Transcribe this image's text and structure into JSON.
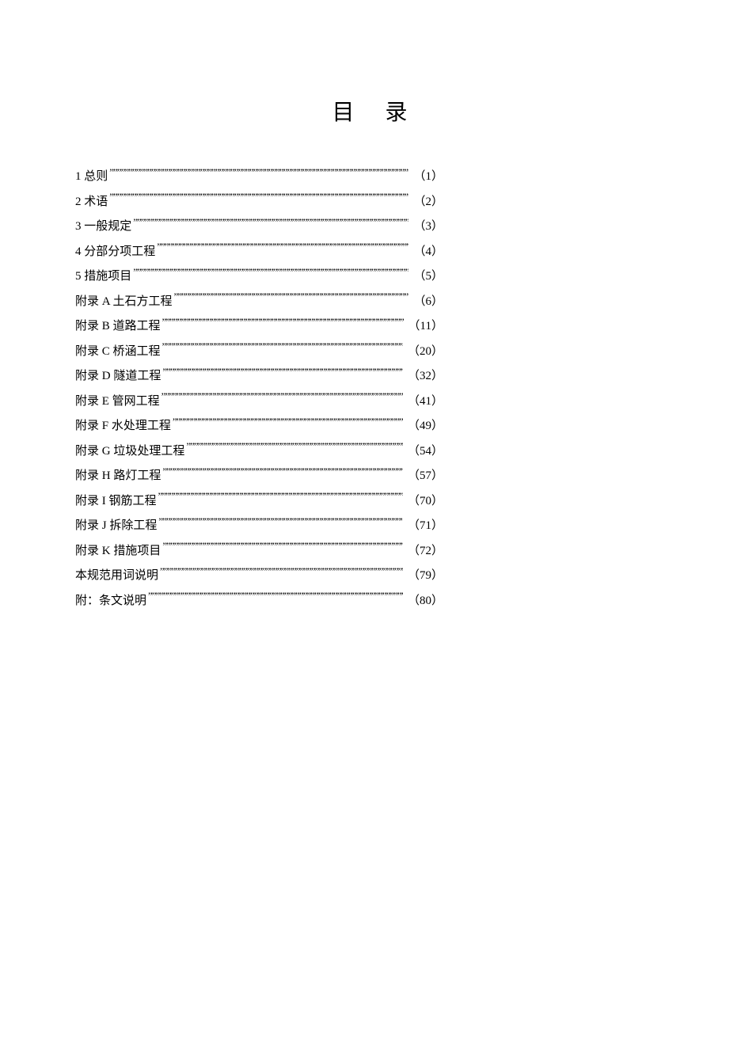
{
  "title": "目 录",
  "entries": [
    {
      "label": "1  总则",
      "page": "（1）"
    },
    {
      "label": "2  术语",
      "page": "（2）"
    },
    {
      "label": "3  一般规定",
      "page": "（3）"
    },
    {
      "label": "4  分部分项工程",
      "page": "（4）"
    },
    {
      "label": "5  措施项目",
      "page": "（5）"
    },
    {
      "label": "附录 A   土石方工程",
      "page": "（6）"
    },
    {
      "label": "附录 B   道路工程",
      "page": "（11）"
    },
    {
      "label": "附录 C   桥涵工程",
      "page": "（20）"
    },
    {
      "label": "附录 D   隧道工程",
      "page": "（32）"
    },
    {
      "label": "附录 E   管网工程",
      "page": "（41）"
    },
    {
      "label": "附录 F   水处理工程",
      "page": "（49）"
    },
    {
      "label": "附录 G   垃圾处理工程",
      "page": "（54）"
    },
    {
      "label": "附录 H   路灯工程",
      "page": "（57）"
    },
    {
      "label": "附录 I   钢筋工程",
      "page": "（70）"
    },
    {
      "label": "附录 J   拆除工程",
      "page": "（71）"
    },
    {
      "label": "附录 K   措施项目",
      "page": "（72）"
    },
    {
      "label": "本规范用词说明",
      "page": "（79）"
    },
    {
      "label": "附：条文说明",
      "page": "（80）"
    }
  ],
  "colors": {
    "background": "#ffffff",
    "text": "#000000"
  },
  "typography": {
    "title_fontsize": 28,
    "entry_fontsize": 15,
    "font_family": "SimSun"
  }
}
